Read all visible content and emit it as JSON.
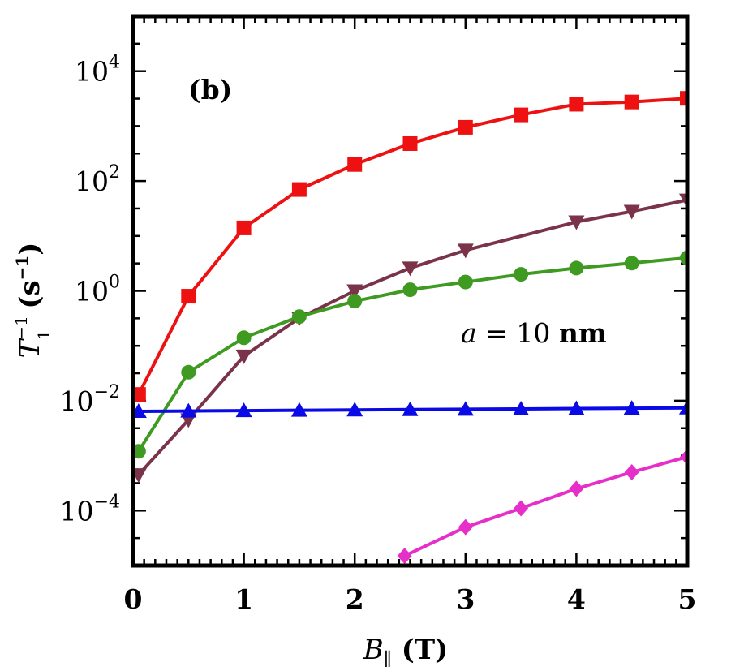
{
  "chart_data": {
    "type": "line",
    "panel_label": "(b)",
    "annotation": {
      "italic": "a",
      "rest": " = 10 ",
      "bold": "nm"
    },
    "xlabel": {
      "main": "B",
      "sub": "∥",
      "unit": " (T)"
    },
    "ylabel": {
      "main": "T",
      "sup": "−1",
      "sub": "1",
      "unit_open": " (s",
      "unit_sup": "−1",
      "unit_close": ")"
    },
    "xlim": [
      0,
      5
    ],
    "ylim_log10": [
      -5,
      5
    ],
    "y_scale": "log",
    "x_ticks": [
      "0",
      "1",
      "2",
      "3",
      "4",
      "5"
    ],
    "y_ticks": [
      {
        "base": "10",
        "exp": "4",
        "value_log10": 4
      },
      {
        "base": "10",
        "exp": "2",
        "value_log10": 2
      },
      {
        "base": "10",
        "exp": "0",
        "value_log10": 0
      },
      {
        "base": "10",
        "exp": "−2",
        "value_log10": -2
      },
      {
        "base": "10",
        "exp": "−4",
        "value_log10": -4
      }
    ],
    "series": [
      {
        "color": "#ee1111",
        "marker": "square",
        "x": [
          0.05,
          0.5,
          1,
          1.5,
          2,
          2.5,
          3,
          3.5,
          4,
          4.5,
          5
        ],
        "y": [
          0.013,
          0.8,
          14,
          70,
          200,
          480,
          950,
          1600,
          2500,
          2750,
          3200
        ]
      },
      {
        "color": "#7a3349",
        "marker": "triangle-down",
        "x": [
          0.05,
          0.5,
          1,
          1.5,
          2,
          2.5,
          3,
          4,
          4.5,
          5
        ],
        "y": [
          0.00045,
          0.0045,
          0.065,
          0.32,
          1.0,
          2.6,
          5.5,
          18,
          28,
          45
        ]
      },
      {
        "color": "#3f9a22",
        "marker": "circle",
        "x": [
          0.05,
          0.5,
          1,
          1.5,
          2,
          2.5,
          3,
          3.5,
          4,
          4.5,
          5
        ],
        "y": [
          0.0012,
          0.033,
          0.14,
          0.34,
          0.65,
          1.05,
          1.45,
          2.0,
          2.6,
          3.2,
          4.0
        ]
      },
      {
        "color": "#0a0ae6",
        "marker": "triangle-up",
        "x": [
          0.05,
          0.5,
          1,
          1.5,
          2,
          2.5,
          3,
          3.5,
          4,
          4.5,
          5
        ],
        "y": [
          0.0064,
          0.0065,
          0.0066,
          0.0067,
          0.0068,
          0.0069,
          0.007,
          0.0071,
          0.0072,
          0.0073,
          0.0074
        ]
      },
      {
        "color": "#e62ec8",
        "marker": "diamond",
        "x": [
          2.45,
          3,
          3.5,
          4,
          4.5,
          5
        ],
        "y": [
          1.5e-05,
          5e-05,
          0.00011,
          0.00025,
          0.0005,
          0.00095
        ]
      }
    ]
  }
}
